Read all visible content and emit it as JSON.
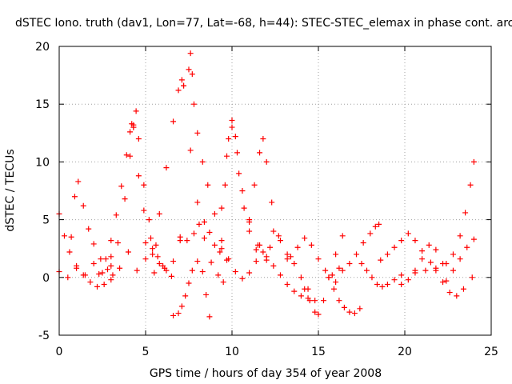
{
  "chart_data": {
    "type": "scatter",
    "title": "dSTEC Iono. truth (dav1, Lon=77, Lat=-68, h=44): STEC-STEC_elemax in phase cont. arc",
    "xlabel": "GPS time / hours of day 354 of year 2008",
    "ylabel": "dSTEC  / TECUs",
    "xlim": [
      0,
      25
    ],
    "ylim": [
      -5,
      20
    ],
    "xticks": [
      0,
      5,
      10,
      15,
      20,
      25
    ],
    "yticks": [
      -5,
      0,
      5,
      10,
      15,
      20
    ],
    "grid": true,
    "marker": "+",
    "color": "#ff0000",
    "arcs": [
      {
        "t": [
          0.0,
          0.3,
          0.6,
          1.0,
          1.4,
          1.8,
          2.2,
          2.6,
          3.0
        ],
        "v": [
          5.5,
          3.6,
          2.2,
          1.0,
          0.2,
          -0.4,
          -0.8,
          -0.6,
          -0.2
        ]
      },
      {
        "t": [
          0.7,
          0.9,
          1.1,
          1.4,
          1.7,
          2.0,
          2.4,
          2.8,
          3.1
        ],
        "v": [
          3.5,
          7.0,
          8.3,
          6.2,
          4.2,
          2.9,
          1.6,
          0.7,
          0.2
        ]
      },
      {
        "t": [
          2.3,
          2.7,
          3.0,
          3.3,
          3.6,
          3.9,
          4.1,
          4.2,
          4.3
        ],
        "v": [
          0.3,
          1.6,
          3.2,
          5.4,
          7.9,
          10.6,
          12.6,
          13.3,
          13.0
        ]
      },
      {
        "t": [
          4.3,
          4.6,
          4.9,
          5.3,
          5.7,
          6.1,
          6.5
        ],
        "v": [
          13.0,
          8.8,
          5.8,
          3.4,
          1.8,
          0.8,
          0.1
        ]
      },
      {
        "t": [
          3.0,
          3.4,
          3.8,
          4.1,
          4.3,
          4.45,
          4.6,
          4.9,
          5.2,
          5.6
        ],
        "v": [
          1.0,
          3.0,
          6.8,
          10.5,
          13.2,
          14.4,
          12.0,
          8.0,
          5.0,
          2.8
        ]
      },
      {
        "t": [
          5.4,
          5.8,
          6.2,
          6.6,
          6.9,
          7.1,
          7.2
        ],
        "v": [
          2.5,
          5.5,
          9.5,
          13.5,
          16.2,
          17.1,
          16.6
        ]
      },
      {
        "t": [
          7.2,
          7.6,
          8.0,
          8.4,
          8.8,
          9.2,
          9.5
        ],
        "v": [
          16.6,
          11.0,
          6.5,
          3.4,
          1.3,
          0.2,
          -0.4
        ]
      },
      {
        "t": [
          7.5,
          7.6,
          7.7,
          7.8,
          8.0,
          8.3,
          8.6,
          9.0,
          9.4,
          9.7
        ],
        "v": [
          18.0,
          19.4,
          17.6,
          15.0,
          12.5,
          10.0,
          8.0,
          5.5,
          3.2,
          1.5
        ]
      },
      {
        "t": [
          9.6,
          9.8,
          10.0,
          10.2,
          10.4,
          10.7,
          11.0,
          11.4
        ],
        "v": [
          8.0,
          12.0,
          13.6,
          12.2,
          9.0,
          6.0,
          4.0,
          2.4
        ]
      },
      {
        "t": [
          9.4,
          9.7,
          10.0,
          10.3,
          10.6,
          11.0,
          11.5,
          12.0
        ],
        "v": [
          6.0,
          10.5,
          13.0,
          10.8,
          7.5,
          4.8,
          2.8,
          1.5
        ]
      },
      {
        "t": [
          11.0,
          11.3,
          11.6,
          11.8,
          12.0,
          12.3,
          12.7,
          13.2
        ],
        "v": [
          5.0,
          8.0,
          10.8,
          12.0,
          10.0,
          6.5,
          3.6,
          1.6
        ]
      },
      {
        "t": [
          6.6,
          6.9,
          7.1,
          7.3,
          7.5,
          7.7,
          8.0,
          8.3,
          8.5,
          8.7
        ],
        "v": [
          -3.3,
          -3.1,
          -2.5,
          -1.6,
          -0.5,
          0.6,
          1.4,
          0.5,
          -1.5,
          -3.4
        ]
      },
      {
        "t": [
          7.0,
          7.4,
          7.8,
          8.1,
          8.4,
          8.7,
          9.0,
          9.3
        ],
        "v": [
          3.5,
          3.2,
          3.8,
          4.6,
          4.8,
          3.9,
          2.8,
          2.2
        ]
      },
      {
        "t": [
          9.4,
          9.8,
          10.2,
          10.6,
          11.0,
          11.4,
          11.8,
          12.2
        ],
        "v": [
          2.5,
          1.6,
          0.5,
          -0.1,
          0.4,
          1.4,
          2.2,
          2.6
        ]
      },
      {
        "t": [
          11.6,
          12.0,
          12.4,
          12.8,
          13.2,
          13.6,
          14.0,
          14.4
        ],
        "v": [
          2.8,
          1.8,
          1.0,
          0.2,
          -0.6,
          -1.2,
          -1.6,
          -1.8
        ]
      },
      {
        "t": [
          14.2,
          14.5,
          14.8,
          15.0,
          15.3,
          15.6,
          16.0,
          16.4
        ],
        "v": [
          -1.0,
          -2.0,
          -3.0,
          -3.2,
          -2.0,
          0.0,
          2.0,
          3.6
        ]
      },
      {
        "t": [
          15.6,
          15.9,
          16.2,
          16.5,
          16.8,
          17.1,
          17.4
        ],
        "v": [
          0.0,
          -1.0,
          -2.0,
          -2.6,
          -3.0,
          -3.1,
          -2.7
        ]
      },
      {
        "t": [
          16.0,
          16.4,
          16.8,
          17.2,
          17.6,
          18.0,
          18.3,
          18.5
        ],
        "v": [
          -0.4,
          0.6,
          1.2,
          2.0,
          3.0,
          3.8,
          4.4,
          4.6
        ]
      },
      {
        "t": [
          17.5,
          17.8,
          18.1,
          18.4,
          18.7,
          19.0,
          19.4,
          19.8
        ],
        "v": [
          1.2,
          0.6,
          0.0,
          -0.6,
          -0.8,
          -0.6,
          -0.2,
          0.2
        ]
      },
      {
        "t": [
          18.6,
          19.0,
          19.4,
          19.8,
          20.2,
          20.6,
          21.0,
          21.5
        ],
        "v": [
          1.5,
          2.0,
          2.6,
          3.2,
          3.8,
          3.2,
          2.3,
          1.3
        ]
      },
      {
        "t": [
          19.8,
          20.2,
          20.6,
          21.0,
          21.4,
          21.8,
          22.2
        ],
        "v": [
          -0.6,
          -0.2,
          0.6,
          1.6,
          2.8,
          2.4,
          1.2
        ]
      },
      {
        "t": [
          21.8,
          22.2,
          22.6,
          23.0,
          23.4,
          23.9
        ],
        "v": [
          0.6,
          -0.4,
          -1.3,
          -1.6,
          -1.0,
          0.0
        ]
      },
      {
        "t": [
          20.6,
          21.2,
          21.8,
          22.4,
          22.8,
          23.2,
          23.5,
          23.8,
          24.0
        ],
        "v": [
          0.4,
          0.6,
          0.8,
          1.2,
          2.0,
          3.6,
          5.6,
          8.0,
          10.0
        ]
      },
      {
        "t": [
          22.4,
          22.8,
          23.2,
          23.6,
          24.0
        ],
        "v": [
          -0.3,
          0.6,
          1.6,
          2.6,
          3.3
        ]
      },
      {
        "t": [
          0.0,
          0.5,
          1.0,
          1.5,
          2.0,
          2.5,
          3.0,
          3.5,
          4.0,
          4.5,
          5.0,
          5.5,
          6.0
        ],
        "v": [
          0.5,
          0.0,
          0.8,
          0.2,
          1.2,
          0.4,
          1.8,
          0.8,
          2.2,
          0.6,
          1.6,
          0.4,
          1.0
        ]
      },
      {
        "t": [
          5.0,
          5.4,
          5.8,
          6.2,
          6.6,
          7.0
        ],
        "v": [
          3.0,
          2.0,
          1.2,
          0.6,
          1.4,
          3.2
        ]
      },
      {
        "t": [
          12.4,
          12.8,
          13.2,
          13.6,
          14.0,
          14.4,
          14.8
        ],
        "v": [
          4.0,
          3.2,
          2.0,
          1.2,
          0.0,
          -1.0,
          -2.0
        ]
      },
      {
        "t": [
          13.4,
          13.8,
          14.2,
          14.6,
          15.0,
          15.4,
          15.8,
          16.2
        ],
        "v": [
          1.8,
          2.6,
          3.4,
          2.8,
          1.6,
          0.6,
          0.2,
          0.8
        ]
      }
    ]
  }
}
